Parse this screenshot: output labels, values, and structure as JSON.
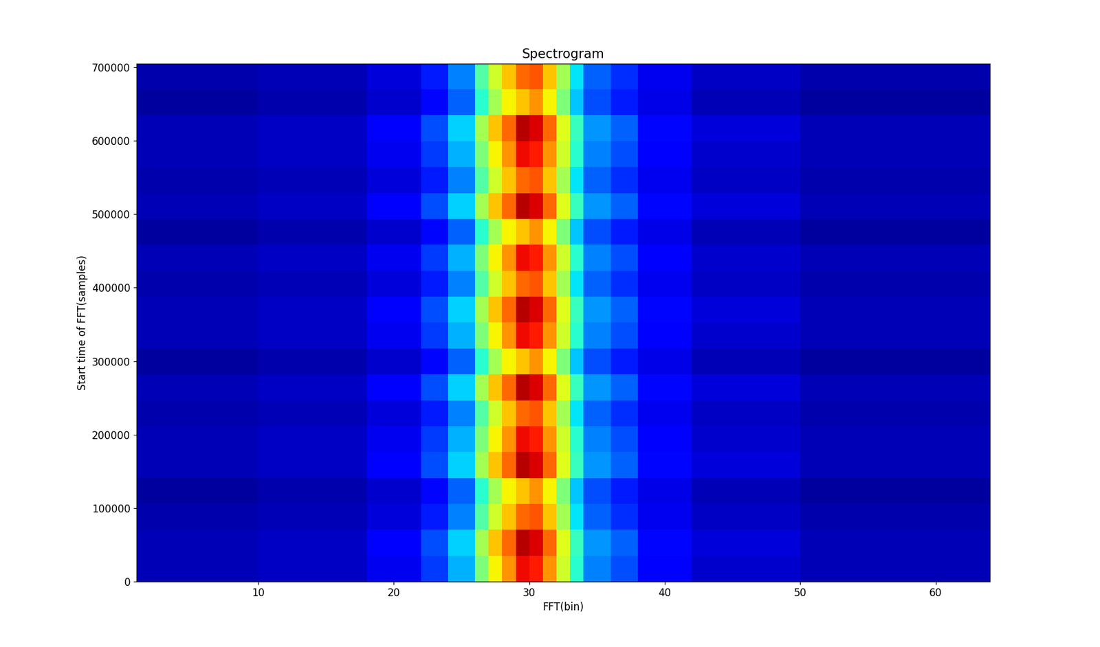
{
  "chart_data": {
    "type": "heatmap",
    "title": "Spectrogram",
    "x_label": "FFT(bin)",
    "y_label": "Start time of FFT(samples)",
    "color": "jet",
    "color_range": [
      0,
      1
    ],
    "x_edges": [
      1,
      10,
      18,
      22,
      24,
      26,
      27,
      28,
      29,
      30,
      31,
      32,
      33,
      34,
      36,
      38,
      42,
      50,
      64
    ],
    "y_edges": [
      0,
      35250,
      70500,
      105750,
      141000,
      176250,
      211500,
      246750,
      282000,
      317250,
      352500,
      387750,
      423000,
      458250,
      493500,
      528750,
      564000,
      599250,
      634500,
      669750,
      705000
    ],
    "cells": [
      [
        0.05,
        0.06,
        0.1,
        0.18,
        0.3,
        0.5,
        0.65,
        0.75,
        0.9,
        0.88,
        0.75,
        0.6,
        0.4,
        0.25,
        0.2,
        0.12,
        0.07,
        0.05
      ],
      [
        0.05,
        0.06,
        0.11,
        0.2,
        0.33,
        0.55,
        0.7,
        0.8,
        0.95,
        0.92,
        0.8,
        0.62,
        0.42,
        0.27,
        0.22,
        0.13,
        0.08,
        0.05
      ],
      [
        0.04,
        0.05,
        0.08,
        0.15,
        0.25,
        0.45,
        0.6,
        0.7,
        0.8,
        0.82,
        0.7,
        0.55,
        0.35,
        0.22,
        0.17,
        0.1,
        0.06,
        0.04
      ],
      [
        0.03,
        0.04,
        0.07,
        0.13,
        0.22,
        0.4,
        0.55,
        0.65,
        0.7,
        0.75,
        0.65,
        0.5,
        0.32,
        0.2,
        0.15,
        0.09,
        0.05,
        0.03
      ],
      [
        0.05,
        0.06,
        0.11,
        0.2,
        0.33,
        0.55,
        0.7,
        0.8,
        0.95,
        0.92,
        0.8,
        0.62,
        0.42,
        0.27,
        0.22,
        0.13,
        0.08,
        0.05
      ],
      [
        0.05,
        0.06,
        0.1,
        0.18,
        0.3,
        0.5,
        0.65,
        0.75,
        0.9,
        0.88,
        0.75,
        0.6,
        0.4,
        0.25,
        0.2,
        0.12,
        0.07,
        0.05
      ],
      [
        0.04,
        0.05,
        0.08,
        0.15,
        0.25,
        0.45,
        0.6,
        0.7,
        0.8,
        0.82,
        0.7,
        0.55,
        0.35,
        0.22,
        0.17,
        0.1,
        0.06,
        0.04
      ],
      [
        0.05,
        0.06,
        0.11,
        0.2,
        0.33,
        0.55,
        0.7,
        0.8,
        0.95,
        0.92,
        0.8,
        0.62,
        0.42,
        0.27,
        0.22,
        0.13,
        0.08,
        0.05
      ],
      [
        0.03,
        0.04,
        0.07,
        0.13,
        0.22,
        0.4,
        0.55,
        0.65,
        0.7,
        0.75,
        0.65,
        0.5,
        0.32,
        0.2,
        0.15,
        0.09,
        0.05,
        0.03
      ],
      [
        0.05,
        0.06,
        0.1,
        0.18,
        0.3,
        0.5,
        0.65,
        0.75,
        0.9,
        0.88,
        0.75,
        0.6,
        0.4,
        0.25,
        0.2,
        0.12,
        0.07,
        0.05
      ],
      [
        0.05,
        0.06,
        0.11,
        0.2,
        0.33,
        0.55,
        0.7,
        0.8,
        0.95,
        0.92,
        0.8,
        0.62,
        0.42,
        0.27,
        0.22,
        0.13,
        0.08,
        0.05
      ],
      [
        0.04,
        0.05,
        0.08,
        0.15,
        0.25,
        0.45,
        0.6,
        0.7,
        0.8,
        0.82,
        0.7,
        0.55,
        0.35,
        0.22,
        0.17,
        0.1,
        0.06,
        0.04
      ],
      [
        0.05,
        0.06,
        0.1,
        0.18,
        0.3,
        0.5,
        0.65,
        0.75,
        0.9,
        0.88,
        0.75,
        0.6,
        0.4,
        0.25,
        0.2,
        0.12,
        0.07,
        0.05
      ],
      [
        0.03,
        0.04,
        0.07,
        0.13,
        0.22,
        0.4,
        0.55,
        0.65,
        0.7,
        0.75,
        0.65,
        0.5,
        0.32,
        0.2,
        0.15,
        0.09,
        0.05,
        0.03
      ],
      [
        0.05,
        0.06,
        0.11,
        0.2,
        0.33,
        0.55,
        0.7,
        0.8,
        0.95,
        0.92,
        0.8,
        0.62,
        0.42,
        0.27,
        0.22,
        0.13,
        0.08,
        0.05
      ],
      [
        0.04,
        0.05,
        0.08,
        0.15,
        0.25,
        0.45,
        0.6,
        0.7,
        0.8,
        0.82,
        0.7,
        0.55,
        0.35,
        0.22,
        0.17,
        0.1,
        0.06,
        0.04
      ],
      [
        0.05,
        0.06,
        0.1,
        0.18,
        0.3,
        0.5,
        0.65,
        0.75,
        0.9,
        0.88,
        0.75,
        0.6,
        0.4,
        0.25,
        0.2,
        0.12,
        0.07,
        0.05
      ],
      [
        0.05,
        0.06,
        0.11,
        0.2,
        0.33,
        0.55,
        0.7,
        0.8,
        0.95,
        0.92,
        0.8,
        0.62,
        0.42,
        0.27,
        0.22,
        0.13,
        0.08,
        0.05
      ],
      [
        0.03,
        0.04,
        0.07,
        0.13,
        0.22,
        0.4,
        0.55,
        0.65,
        0.7,
        0.75,
        0.65,
        0.5,
        0.32,
        0.2,
        0.15,
        0.09,
        0.05,
        0.03
      ],
      [
        0.04,
        0.05,
        0.08,
        0.15,
        0.25,
        0.45,
        0.6,
        0.7,
        0.8,
        0.82,
        0.7,
        0.55,
        0.35,
        0.22,
        0.17,
        0.1,
        0.06,
        0.04
      ]
    ],
    "xlim": [
      1,
      64
    ],
    "xticks": [
      10,
      20,
      30,
      40,
      50,
      60
    ],
    "ylim": [
      0,
      705000
    ],
    "yticks": [
      0,
      100000,
      200000,
      300000,
      400000,
      500000,
      600000,
      700000
    ]
  }
}
